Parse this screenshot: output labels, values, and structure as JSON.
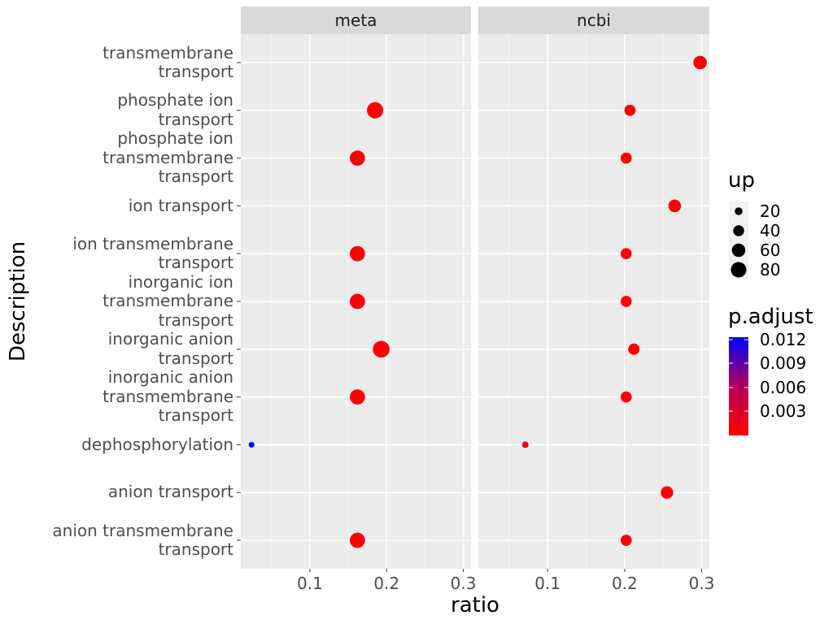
{
  "chart_data": {
    "type": "scatter",
    "facets": [
      "meta",
      "ncbi"
    ],
    "xlabel": "ratio",
    "ylabel": "Description",
    "x_ticks": [
      "0.1",
      "0.2",
      "0.3"
    ],
    "xlim": [
      0.01,
      0.31
    ],
    "categories": [
      "transmembrane\ntransport",
      "phosphate ion\ntransport",
      "phosphate ion\ntransmembrane\ntransport",
      "ion transport",
      "ion transmembrane\ntransport",
      "inorganic ion\ntransmembrane\ntransport",
      "inorganic anion\ntransport",
      "inorganic anion\ntransmembrane\ntransport",
      "dephosphorylation",
      "anion transport",
      "anion transmembrane\ntransport"
    ],
    "points": [
      {
        "facet": "meta",
        "category": "phosphate ion\ntransport",
        "ratio": 0.185,
        "up": 80,
        "p_adjust": 0.0001
      },
      {
        "facet": "meta",
        "category": "phosphate ion\ntransmembrane\ntransport",
        "ratio": 0.162,
        "up": 70,
        "p_adjust": 0.0001
      },
      {
        "facet": "meta",
        "category": "ion transmembrane\ntransport",
        "ratio": 0.162,
        "up": 70,
        "p_adjust": 0.0001
      },
      {
        "facet": "meta",
        "category": "inorganic ion\ntransmembrane\ntransport",
        "ratio": 0.162,
        "up": 70,
        "p_adjust": 0.0001
      },
      {
        "facet": "meta",
        "category": "inorganic anion\ntransport",
        "ratio": 0.193,
        "up": 84,
        "p_adjust": 0.0001
      },
      {
        "facet": "meta",
        "category": "inorganic anion\ntransmembrane\ntransport",
        "ratio": 0.162,
        "up": 70,
        "p_adjust": 0.0001
      },
      {
        "facet": "meta",
        "category": "dephosphorylation",
        "ratio": 0.024,
        "up": 10,
        "p_adjust": 0.0125
      },
      {
        "facet": "meta",
        "category": "anion transmembrane\ntransport",
        "ratio": 0.162,
        "up": 70,
        "p_adjust": 0.0001
      },
      {
        "facet": "ncbi",
        "category": "transmembrane\ntransport",
        "ratio": 0.298,
        "up": 55,
        "p_adjust": 0.0002
      },
      {
        "facet": "ncbi",
        "category": "phosphate ion\ntransport",
        "ratio": 0.207,
        "up": 38,
        "p_adjust": 0.0002
      },
      {
        "facet": "ncbi",
        "category": "phosphate ion\ntransmembrane\ntransport",
        "ratio": 0.202,
        "up": 37,
        "p_adjust": 0.0002
      },
      {
        "facet": "ncbi",
        "category": "ion transport",
        "ratio": 0.265,
        "up": 48,
        "p_adjust": 0.0002
      },
      {
        "facet": "ncbi",
        "category": "ion transmembrane\ntransport",
        "ratio": 0.202,
        "up": 37,
        "p_adjust": 0.0002
      },
      {
        "facet": "ncbi",
        "category": "inorganic ion\ntransmembrane\ntransport",
        "ratio": 0.202,
        "up": 37,
        "p_adjust": 0.0002
      },
      {
        "facet": "ncbi",
        "category": "inorganic anion\ntransport",
        "ratio": 0.212,
        "up": 39,
        "p_adjust": 0.0002
      },
      {
        "facet": "ncbi",
        "category": "inorganic anion\ntransmembrane\ntransport",
        "ratio": 0.202,
        "up": 37,
        "p_adjust": 0.0002
      },
      {
        "facet": "ncbi",
        "category": "dephosphorylation",
        "ratio": 0.071,
        "up": 13,
        "p_adjust": 0.0005
      },
      {
        "facet": "ncbi",
        "category": "anion transport",
        "ratio": 0.255,
        "up": 47,
        "p_adjust": 0.0002
      },
      {
        "facet": "ncbi",
        "category": "anion transmembrane\ntransport",
        "ratio": 0.202,
        "up": 37,
        "p_adjust": 0.0002
      }
    ],
    "legend": {
      "size_title": "up",
      "size_breaks": [
        "20",
        "40",
        "60",
        "80"
      ],
      "color_title": "p.adjust",
      "color_breaks": [
        "0.012",
        "0.009",
        "0.006",
        "0.003"
      ],
      "color_low": "#ff0000",
      "color_high": "#0000ff",
      "placement": "right"
    },
    "grid": true,
    "colors": {
      "panel_bg": "#ebebeb",
      "strip_bg": "#d9d9d9",
      "grid": "#ffffff"
    }
  }
}
